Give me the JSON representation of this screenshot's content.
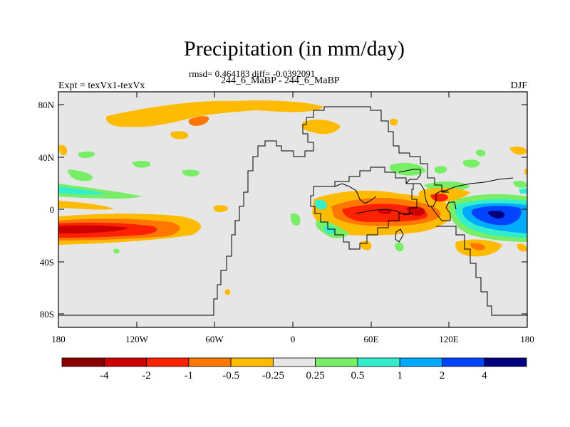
{
  "title": "Precipitation (in mm/day)",
  "stats": "rmsd= 0.464183 diff= -0.0392091",
  "subtitle": "244_6_MaBP - 244_6_MaBP",
  "expt": "Expt = texVx1-texVx",
  "season": "DJF",
  "map": {
    "lat_ticks": [
      "80N",
      "40N",
      "0",
      "40S",
      "80S"
    ],
    "lon_ticks": [
      "180",
      "120W",
      "60W",
      "0",
      "60E",
      "120E",
      "180"
    ],
    "background_color": "#e6e6e6"
  },
  "colorbar": {
    "colors": [
      "#8b0000",
      "#cc0000",
      "#ff2200",
      "#ff7700",
      "#ffbb00",
      "#e6e6e6",
      "#77ee66",
      "#33eecc",
      "#00aaff",
      "#0044ff",
      "#000080"
    ],
    "labels": [
      "-4",
      "-2",
      "-1",
      "-0.5",
      "-0.25",
      "0.25",
      "0.5",
      "1",
      "2",
      "4"
    ]
  }
}
